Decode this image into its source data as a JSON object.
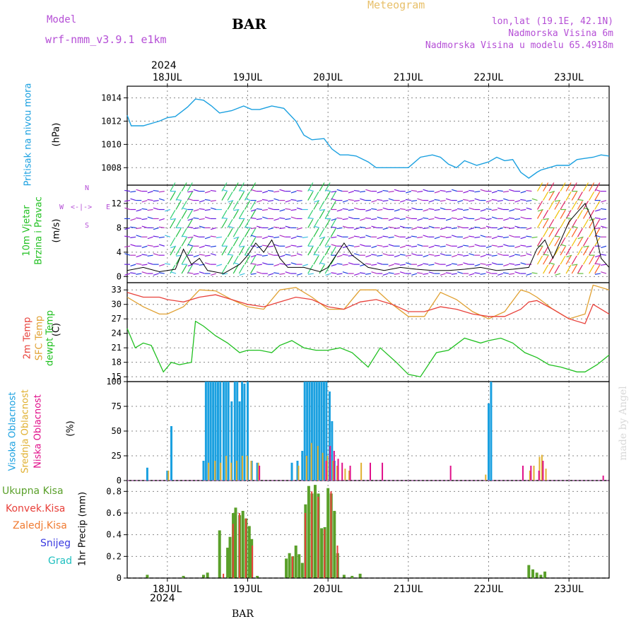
{
  "header": {
    "model_label": "Model",
    "model_name": "wrf-nmm_v3.9.1 e1km",
    "station": "BAR",
    "title": "Meteogram",
    "lonlat": "lon,lat (19.1E, 42.1N)",
    "elevation": "Nadmorska Visina 6m",
    "model_elevation": "Nadmorska Visina u modelu 65.4918m",
    "footer_station": "BAR",
    "watermark": "made by Angel"
  },
  "colors": {
    "pressure": "#1aa0e0",
    "temp2m": "#e8403a",
    "sfc_temp": "#e0a030",
    "dewpoint": "#20c020",
    "cloud_high": "#1aa0e0",
    "cloud_mid": "#e0b030",
    "cloud_low": "#e0108a",
    "precip_total": "#5aa02a",
    "precip_conv": "#e8403a",
    "precip_frozen": "#f07a30",
    "snow": "#3a3ae0",
    "graupel": "#20c0c0",
    "title_purple": "#b54fd6",
    "meteogram_title": "#e8c06a"
  },
  "time_axis": {
    "year": "2024",
    "days": [
      "18JUL",
      "19JUL",
      "20JUL",
      "21JUL",
      "22JUL",
      "23JUL"
    ],
    "day_values": [
      1,
      2,
      3,
      4,
      5,
      6
    ],
    "xlim": [
      0.5,
      6.5
    ]
  },
  "panels": {
    "pressure": {
      "label": "Pritisak na nivou mora",
      "unit": "(hPa)",
      "ticks": [
        "1014",
        "1012",
        "1010",
        "1008"
      ]
    },
    "wind": {
      "label1": "10m Vjetar",
      "label2": "Brzina i Pravac",
      "unit": "(m/s)",
      "ticks": [
        "12",
        "8",
        "4",
        "0"
      ],
      "compass_n": "N",
      "compass_e": "E",
      "compass_w": "W",
      "compass_s": "S"
    },
    "temperature": {
      "label1": "2m Temp",
      "label2": "SFC Temp",
      "label3": "dewpt Temp",
      "unit": "(C)",
      "ticks": [
        "33",
        "30",
        "27",
        "24",
        "21",
        "18",
        "15"
      ]
    },
    "cloud": {
      "label1": "Visoka Oblacnost",
      "label2": "Srednja Oblacnost",
      "label3": "Niska Oblacnost",
      "unit": "(%)",
      "ticks": [
        "100",
        "75",
        "50",
        "25",
        "0"
      ]
    },
    "precip": {
      "legend_total": "Ukupna Kisa",
      "legend_conv": "Konvek.Kisa",
      "legend_frozen": "Zaledj.Kisa",
      "legend_snow": "Snijeg",
      "legend_grad": "Grad",
      "unit": "1hr Precip (mm)",
      "ticks": [
        "0.8",
        "0.6",
        "0.4",
        "0.2",
        "0"
      ]
    }
  },
  "chart_data": [
    {
      "type": "line",
      "panel": "pressure",
      "ylim": [
        1006.5,
        1015
      ],
      "grid": true,
      "series": [
        {
          "name": "Pritisak na nivou mora",
          "x": [
            0.5,
            0.55,
            0.7,
            0.9,
            1.0,
            1.1,
            1.25,
            1.35,
            1.45,
            1.55,
            1.65,
            1.8,
            1.95,
            2.05,
            2.15,
            2.3,
            2.45,
            2.6,
            2.7,
            2.8,
            2.95,
            3.05,
            3.15,
            3.25,
            3.35,
            3.5,
            3.6,
            3.75,
            3.85,
            4.0,
            4.15,
            4.3,
            4.4,
            4.5,
            4.6,
            4.7,
            4.85,
            5.0,
            5.1,
            5.2,
            5.3,
            5.4,
            5.5,
            5.6,
            5.65,
            5.75,
            5.85,
            6.0,
            6.1,
            6.2,
            6.3,
            6.4,
            6.5
          ],
          "values": [
            1012.5,
            1011.6,
            1011.6,
            1012.0,
            1012.3,
            1012.4,
            1013.2,
            1013.9,
            1013.8,
            1013.3,
            1012.7,
            1012.9,
            1013.3,
            1013.0,
            1013.0,
            1013.3,
            1013.1,
            1012.0,
            1010.8,
            1010.4,
            1010.5,
            1009.6,
            1009.1,
            1009.1,
            1009.0,
            1008.5,
            1008.0,
            1008.0,
            1008.0,
            1008.0,
            1008.9,
            1009.1,
            1008.9,
            1008.3,
            1008.0,
            1008.6,
            1008.2,
            1008.5,
            1008.9,
            1008.6,
            1008.7,
            1007.6,
            1007.1,
            1007.6,
            1007.8,
            1008.0,
            1008.2,
            1008.2,
            1008.7,
            1008.8,
            1008.9,
            1009.1,
            1009.0
          ]
        }
      ]
    },
    {
      "type": "line",
      "panel": "wind",
      "ylim": [
        -1,
        15
      ],
      "grid": true,
      "series": [
        {
          "name": "10m Vjetar",
          "x": [
            0.5,
            0.7,
            0.9,
            1.1,
            1.2,
            1.3,
            1.4,
            1.5,
            1.7,
            1.9,
            2.0,
            2.1,
            2.2,
            2.3,
            2.4,
            2.5,
            2.7,
            2.9,
            3.0,
            3.1,
            3.2,
            3.3,
            3.5,
            3.7,
            3.9,
            4.1,
            4.3,
            4.5,
            4.7,
            4.9,
            5.1,
            5.3,
            5.5,
            5.6,
            5.7,
            5.8,
            5.9,
            6.0,
            6.1,
            6.2,
            6.3,
            6.4,
            6.5
          ],
          "values": [
            1.0,
            1.5,
            0.8,
            1.2,
            4.5,
            2.0,
            3.0,
            1.0,
            0.5,
            2.0,
            3.5,
            5.5,
            4.0,
            6.0,
            3.0,
            1.5,
            1.5,
            0.8,
            1.5,
            3.5,
            5.5,
            3.5,
            1.5,
            1.0,
            1.5,
            1.2,
            1.0,
            1.0,
            1.2,
            1.5,
            1.0,
            1.2,
            1.5,
            4.5,
            6.0,
            3.0,
            6.0,
            9.0,
            10.5,
            12.0,
            9.0,
            3.0,
            1.5
          ]
        }
      ]
    },
    {
      "type": "line",
      "panel": "temperature",
      "ylim": [
        14,
        34.5
      ],
      "grid": true,
      "series": [
        {
          "name": "2m Temp",
          "x": [
            0.5,
            0.7,
            0.9,
            1.0,
            1.2,
            1.4,
            1.6,
            1.8,
            2.0,
            2.2,
            2.4,
            2.6,
            2.8,
            3.0,
            3.2,
            3.4,
            3.6,
            3.8,
            4.0,
            4.2,
            4.4,
            4.6,
            4.8,
            5.0,
            5.2,
            5.4,
            5.5,
            5.6,
            5.8,
            6.0,
            6.2,
            6.3,
            6.5
          ],
          "values": [
            32.5,
            31.5,
            31.5,
            31.0,
            30.5,
            31.5,
            32.0,
            31.0,
            30.0,
            29.5,
            30.5,
            31.5,
            31.0,
            29.5,
            29.0,
            30.5,
            31.0,
            30.0,
            28.5,
            28.5,
            29.5,
            29.0,
            28.0,
            27.5,
            27.5,
            29.0,
            30.5,
            30.8,
            29.0,
            27.0,
            26.0,
            30.0,
            28.0
          ]
        },
        {
          "name": "SFC Temp",
          "x": [
            0.5,
            0.7,
            0.9,
            1.0,
            1.2,
            1.4,
            1.6,
            1.8,
            2.0,
            2.2,
            2.4,
            2.6,
            2.8,
            3.0,
            3.2,
            3.4,
            3.6,
            3.8,
            4.0,
            4.2,
            4.4,
            4.6,
            4.8,
            5.0,
            5.2,
            5.4,
            5.5,
            5.6,
            5.8,
            6.0,
            6.2,
            6.3,
            6.5
          ],
          "values": [
            31.5,
            29.5,
            28.0,
            28.0,
            29.5,
            33.0,
            32.8,
            31.0,
            29.5,
            29.0,
            33.0,
            33.5,
            31.5,
            29.0,
            29.0,
            33.0,
            33.0,
            30.0,
            27.5,
            27.5,
            32.5,
            31.0,
            28.5,
            27.0,
            28.5,
            33.0,
            32.5,
            31.5,
            29.0,
            27.0,
            28.0,
            34.0,
            33.0
          ]
        },
        {
          "name": "dewpt Temp",
          "x": [
            0.5,
            0.6,
            0.7,
            0.8,
            0.95,
            1.05,
            1.15,
            1.3,
            1.35,
            1.45,
            1.6,
            1.75,
            1.9,
            2.0,
            2.15,
            2.3,
            2.4,
            2.55,
            2.7,
            2.85,
            3.0,
            3.15,
            3.3,
            3.5,
            3.65,
            3.85,
            4.0,
            4.15,
            4.35,
            4.5,
            4.7,
            4.9,
            5.0,
            5.15,
            5.3,
            5.45,
            5.6,
            5.75,
            5.9,
            6.1,
            6.2,
            6.35,
            6.5
          ],
          "values": [
            25.0,
            21.0,
            22.0,
            21.5,
            16.0,
            18.0,
            17.5,
            18.0,
            26.5,
            25.5,
            23.5,
            22.0,
            20.0,
            20.5,
            20.5,
            20.0,
            21.5,
            22.5,
            21.0,
            20.5,
            20.5,
            21.0,
            20.0,
            17.0,
            21.0,
            18.0,
            15.5,
            15.0,
            20.0,
            20.5,
            23.0,
            22.0,
            22.5,
            23.0,
            22.0,
            20.0,
            19.0,
            17.5,
            17.0,
            16.0,
            16.0,
            17.5,
            19.5
          ]
        }
      ]
    },
    {
      "type": "bar",
      "panel": "cloud",
      "ylim": [
        0,
        100
      ],
      "grid": true,
      "series": [
        {
          "name": "Visoka Oblacnost",
          "x": [
            0.75,
            1.0,
            1.05,
            1.45,
            1.48,
            1.51,
            1.54,
            1.57,
            1.6,
            1.63,
            1.66,
            1.7,
            1.73,
            1.76,
            1.8,
            1.84,
            1.87,
            1.9,
            1.93,
            1.96,
            2.0,
            2.05,
            2.12,
            2.55,
            2.62,
            2.68,
            2.71,
            2.74,
            2.77,
            2.8,
            2.83,
            2.86,
            2.89,
            2.92,
            2.95,
            2.98,
            3.02,
            3.05,
            3.08,
            5.0,
            5.03
          ],
          "values": [
            13,
            10,
            55,
            20,
            100,
            100,
            100,
            100,
            100,
            100,
            100,
            100,
            100,
            100,
            80,
            100,
            100,
            80,
            100,
            98,
            100,
            20,
            18,
            18,
            20,
            30,
            100,
            100,
            100,
            100,
            100,
            100,
            100,
            100,
            100,
            100,
            90,
            60,
            20,
            78,
            100
          ]
        },
        {
          "name": "Srednja Oblacnost",
          "x": [
            1.0,
            1.5,
            1.58,
            1.65,
            1.72,
            1.78,
            1.85,
            1.92,
            1.98,
            2.03,
            2.12,
            2.62,
            2.72,
            2.78,
            2.86,
            2.92,
            2.98,
            3.05,
            3.1,
            3.2,
            3.25,
            3.4,
            4.95,
            5.5,
            5.55,
            5.62,
            5.65,
            5.7
          ],
          "values": [
            10,
            18,
            20,
            18,
            25,
            18,
            20,
            25,
            25,
            20,
            18,
            15,
            25,
            38,
            35,
            28,
            25,
            20,
            15,
            12,
            10,
            18,
            6,
            10,
            15,
            24,
            26,
            12
          ]
        },
        {
          "name": "Niska Oblacnost",
          "x": [
            2.12,
            2.95,
            3.0,
            3.05,
            3.1,
            3.15,
            3.25,
            3.5,
            3.65,
            4.5,
            5.4,
            5.5,
            5.6,
            5.65,
            6.4
          ],
          "values": [
            15,
            20,
            35,
            30,
            22,
            18,
            15,
            18,
            18,
            15,
            15,
            15,
            10,
            20,
            5
          ]
        }
      ]
    },
    {
      "type": "bar",
      "panel": "precip",
      "ylim": [
        0,
        0.9
      ],
      "grid": true,
      "series": [
        {
          "name": "Ukupna Kisa",
          "x": [
            0.75,
            1.2,
            1.45,
            1.5,
            1.65,
            1.75,
            1.78,
            1.82,
            1.85,
            1.9,
            1.94,
            1.98,
            2.02,
            2.05,
            2.12,
            2.48,
            2.52,
            2.56,
            2.6,
            2.64,
            2.68,
            2.72,
            2.76,
            2.8,
            2.84,
            2.88,
            2.92,
            2.96,
            3.0,
            3.04,
            3.08,
            3.12,
            3.2,
            3.3,
            3.4,
            5.5,
            5.55,
            5.6,
            5.65,
            5.7
          ],
          "values": [
            0.03,
            0.02,
            0.03,
            0.05,
            0.44,
            0.28,
            0.38,
            0.6,
            0.65,
            0.58,
            0.62,
            0.55,
            0.48,
            0.36,
            0.02,
            0.18,
            0.23,
            0.2,
            0.3,
            0.22,
            0.14,
            0.68,
            0.85,
            0.78,
            0.86,
            0.78,
            0.46,
            0.47,
            0.83,
            0.78,
            0.62,
            0.23,
            0.03,
            0.02,
            0.04,
            0.12,
            0.08,
            0.05,
            0.03,
            0.06
          ]
        },
        {
          "name": "Konvek.Kisa",
          "x": [
            1.68,
            1.8,
            1.88,
            1.96,
            2.04,
            2.54,
            2.7,
            2.78,
            2.86,
            2.94,
            3.02,
            3.1
          ],
          "values": [
            0.04,
            0.5,
            0.6,
            0.55,
            0.3,
            0.2,
            0.6,
            0.8,
            0.75,
            0.45,
            0.8,
            0.3
          ]
        }
      ]
    }
  ]
}
